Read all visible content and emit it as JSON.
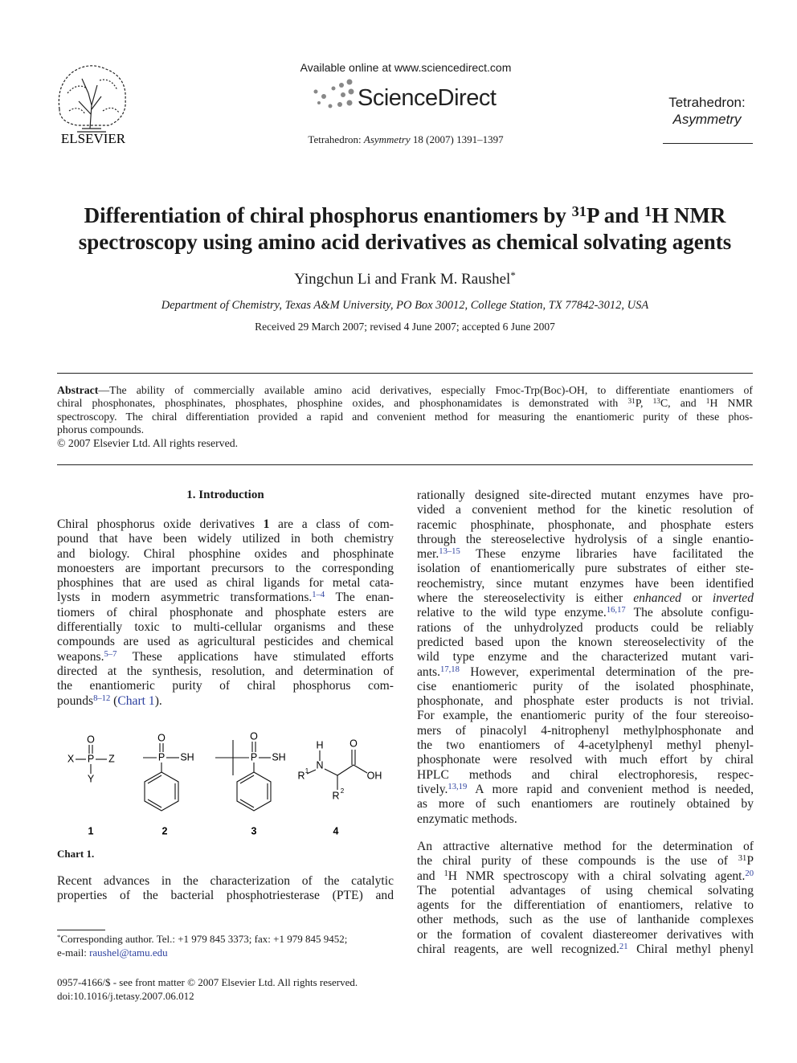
{
  "header": {
    "available": "Available online at www.sciencedirect.com",
    "brand": "ScienceDirect",
    "citation": [
      [
        "Tetrahedron: ",
        {
          "i": "Asymmetry"
        },
        " 18 (2007) 1391–1397"
      ]
    ],
    "publisher": "ELSEVIER",
    "journal": [
      "Tetrahedron:",
      "Asymmetry"
    ]
  },
  "title": [
    [
      "Differentiation of chiral phosphorus enantiomers by ",
      {
        "sup": "31"
      },
      "P and ",
      {
        "sup": "1"
      },
      "H NMR"
    ],
    "spectroscopy using amino acid derivatives as chemical solvating agents"
  ],
  "authors": [
    [
      "Yingchun Li and Frank M. Raushel",
      {
        "sup": "*"
      }
    ]
  ],
  "affiliation": "Department of Chemistry, Texas A&M University, PO Box 30012, College Station, TX 77842-3012, USA",
  "dates": "Received 29 March 2007; revised 4 June 2007; accepted 6 June 2007",
  "abstract": {
    "lines": [
      [
        {
          "b": "Abstract"
        },
        "—The ability of commercially available amino acid derivatives, especially Fmoc-Trp(Boc)-OH, to differentiate enantiomers of"
      ],
      [
        "chiral phosphonates, phosphinates, phosphates, phosphine oxides, and phosphonamidates is demonstrated with ",
        {
          "sup": "31"
        },
        "P, ",
        {
          "sup": "13"
        },
        "C, and ",
        {
          "sup": "1"
        },
        "H NMR"
      ],
      "spectroscopy. The chiral differentiation provided a rapid and convenient method for measuring the enantiomeric purity of these phos-",
      "phorus compounds."
    ],
    "copyright": "© 2007 Elsevier Ltd. All rights reserved."
  },
  "section": {
    "heading": "1. Introduction",
    "left": [
      [
        [
          "Chiral phosphorus oxide derivatives ",
          {
            "b": "1"
          },
          " are a class of com-"
        ],
        "pound that have been widely utilized in both chemistry",
        "and biology. Chiral phosphine oxides and phosphinate",
        "monoesters are important precursors to the corresponding",
        "phosphines that are used as chiral ligands for metal cata-",
        [
          "lysts in modern asymmetric transformations.",
          {
            "ref": "1–4"
          },
          " The enan-"
        ],
        "tiomers of chiral phosphonate and phosphate esters are",
        "differentially toxic to multi-cellular organisms and these",
        "compounds are used as agricultural pesticides and chemical",
        [
          "weapons.",
          {
            "ref": "5–7"
          },
          " These applications have stimulated efforts"
        ],
        "directed at the synthesis, resolution, and determination of",
        "the enantiomeric purity of chiral phosphorus com-",
        [
          "pounds",
          {
            "ref": "8–12"
          },
          " (",
          {
            "link": "Chart 1"
          },
          ")."
        ]
      ],
      [
        "Recent advances in the characterization of the catalytic",
        "properties of the bacterial phosphotriesterase (PTE) and"
      ]
    ],
    "right": [
      [
        "rationally designed site-directed mutant enzymes have pro-",
        "vided a convenient method for the kinetic resolution of",
        "racemic phosphinate, phosphonate, and phosphate esters",
        "through the stereoselective hydrolysis of a single enantio-",
        [
          "mer.",
          {
            "ref": "13–15"
          },
          " These enzyme libraries have facilitated the"
        ],
        "isolation of enantiomerically pure substrates of either ste-",
        "reochemistry, since mutant enzymes have been identified",
        [
          "where the stereoselectivity is either ",
          {
            "i": "enhanced"
          },
          " or ",
          {
            "i": "inverted"
          }
        ],
        [
          "relative to the wild type enzyme.",
          {
            "ref": "16,17"
          },
          " The absolute configu-"
        ],
        "rations of the unhydrolyzed products could be reliably",
        "predicted based upon the known stereoselectivity of the",
        "wild type enzyme and the characterized mutant vari-",
        [
          "ants.",
          {
            "ref": "17,18"
          },
          " However, experimental determination of the pre-"
        ],
        "cise enantiomeric purity of the isolated phosphinate,",
        "phosphonate, and phosphate ester products is not trivial.",
        "For example, the enantiomeric purity of the four stereoiso-",
        "mers of pinacolyl 4-nitrophenyl methylphosphonate and",
        "the two enantiomers of 4-acetylphenyl methyl phenyl-",
        "phosphonate were resolved with much effort by chiral",
        "HPLC methods and chiral electrophoresis, respec-",
        [
          "tively.",
          {
            "ref": "13,19"
          },
          " A more rapid and convenient method is needed,"
        ],
        "as more of such enantiomers are routinely obtained by",
        "enzymatic methods."
      ],
      [
        "An attractive alternative method for the determination of",
        [
          "the chiral purity of these compounds is the use of ",
          {
            "sup": "31"
          },
          "P"
        ],
        [
          "and ",
          {
            "sup": "1"
          },
          "H NMR spectroscopy with a chiral solvating agent.",
          {
            "ref": "20"
          }
        ],
        "The potential advantages of using chemical solvating",
        "agents for the differentiation of enantiomers, relative to",
        "other methods, such as the use of lanthanide complexes",
        "or the formation of covalent diastereomer derivatives with",
        [
          "chiral reagents, are well recognized.",
          {
            "ref": "21"
          },
          " Chiral methyl phenyl"
        ]
      ]
    ]
  },
  "chart": {
    "caption": "Chart 1.",
    "labels": [
      "1",
      "2",
      "3",
      "4"
    ],
    "atoms": [
      [
        "O",
        "X",
        "P",
        "Z",
        "Y"
      ],
      [
        "O",
        "P",
        "SH"
      ],
      [
        "O",
        "P",
        "SH"
      ],
      [
        "H",
        "N",
        "R",
        "1",
        "O",
        "OH",
        "R",
        "2"
      ]
    ]
  },
  "footnote": [
    [
      {
        "sup": "*"
      },
      "Corresponding author. Tel.: +1 979 845 3373; fax: +1 979 845 9452;"
    ],
    [
      "e-mail: ",
      {
        "link": "raushel@tamu.edu"
      }
    ]
  ],
  "footer": [
    "0957-4166/$ - see front matter © 2007 Elsevier Ltd. All rights reserved.",
    "doi:10.1016/j.tetasy.2007.06.012"
  ]
}
